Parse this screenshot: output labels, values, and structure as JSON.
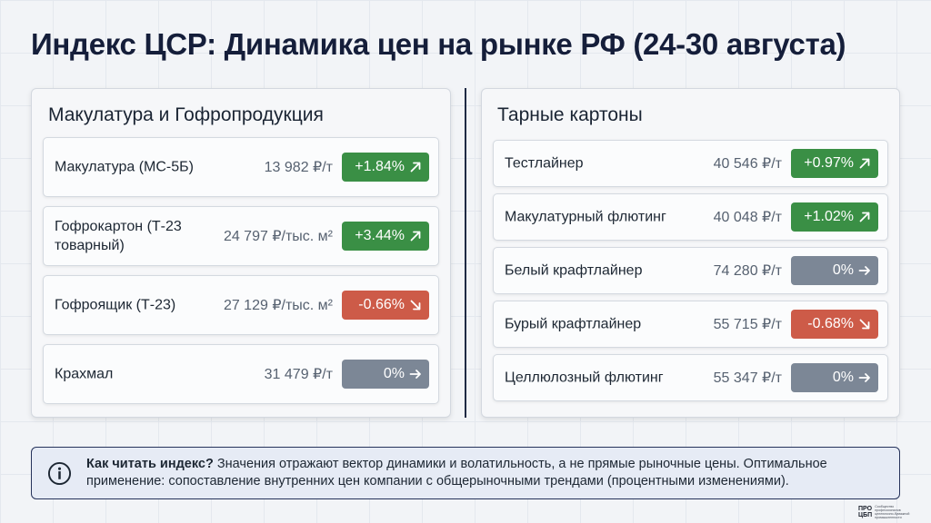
{
  "title": "Индекс ЦСР: Динамика цен на рынке РФ (24-30 августа)",
  "left_panel": {
    "title": "Макулатура и Гофропродукция",
    "items": [
      {
        "name": "Макулатура (МС-5Б)",
        "price": "13 982 ₽/т",
        "change": "+1.84%",
        "trend": "up"
      },
      {
        "name": "Гофрокартон (Т-23 товарный)",
        "price": "24 797 ₽/тыс. м²",
        "change": "+3.44%",
        "trend": "up"
      },
      {
        "name": "Гофроящик (Т-23)",
        "price": "27 129 ₽/тыс. м²",
        "change": "-0.66%",
        "trend": "down"
      },
      {
        "name": "Крахмал",
        "price": "31 479 ₽/т",
        "change": "0%",
        "trend": "flat"
      }
    ]
  },
  "right_panel": {
    "title": "Тарные картоны",
    "items": [
      {
        "name": "Тестлайнер",
        "price": "40 546 ₽/т",
        "change": "+0.97%",
        "trend": "up"
      },
      {
        "name": "Макулатурный флютинг",
        "price": "40 048 ₽/т",
        "change": "+1.02%",
        "trend": "up"
      },
      {
        "name": "Белый крафтлайнер",
        "price": "74 280 ₽/т",
        "change": "0%",
        "trend": "flat"
      },
      {
        "name": "Бурый крафтлайнер",
        "price": "55 715 ₽/т",
        "change": "-0.68%",
        "trend": "down"
      },
      {
        "name": "Целлюлозный флютинг",
        "price": "55 347 ₽/т",
        "change": "0%",
        "trend": "flat"
      }
    ]
  },
  "info": {
    "bold": "Как читать индекс?",
    "text": " Значения отражают вектор динамики и волатильность, а не прямые рыночные цены. Оптимальное применение: сопоставление внутренних цен компании с общерыночными трендами (процентными изменениями).",
    "icon": "info-icon"
  },
  "logo": {
    "line1": "ПРО",
    "line2": "ЦБП",
    "caption": "Сообщество профессионалов целлюлозно-бумажной промышленности"
  },
  "colors": {
    "up": "#3a8f45",
    "down": "#cd5b48",
    "flat": "#7c8796",
    "title": "#151e3a"
  }
}
